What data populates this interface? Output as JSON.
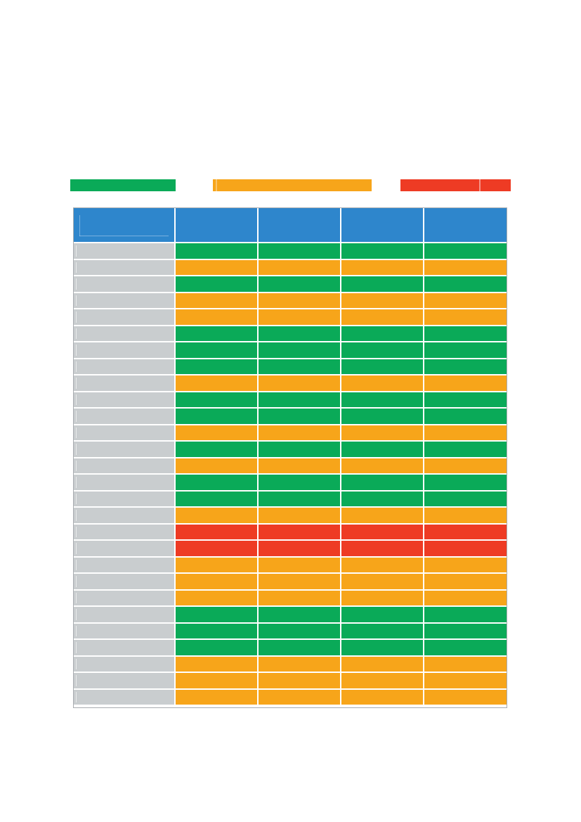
{
  "colors": {
    "green": "#0aaa58",
    "amber": "#f7a51a",
    "red": "#ee3b24",
    "header": "#2e86cc",
    "label": "#c9cdcf"
  },
  "legend": [
    {
      "key": "green",
      "label": ""
    },
    {
      "key": "amber",
      "label": ""
    },
    {
      "key": "red",
      "label": ""
    }
  ],
  "table": {
    "headers": [
      "",
      "",
      "",
      "",
      ""
    ],
    "rows": [
      {
        "label": "",
        "status": "green"
      },
      {
        "label": "",
        "status": "amber"
      },
      {
        "label": "",
        "status": "green"
      },
      {
        "label": "",
        "status": "amber"
      },
      {
        "label": "",
        "status": "amber"
      },
      {
        "label": "",
        "status": "green"
      },
      {
        "label": "",
        "status": "green"
      },
      {
        "label": "",
        "status": "green"
      },
      {
        "label": "",
        "status": "amber"
      },
      {
        "label": "",
        "status": "green"
      },
      {
        "label": "",
        "status": "green"
      },
      {
        "label": "",
        "status": "amber"
      },
      {
        "label": "",
        "status": "green"
      },
      {
        "label": "",
        "status": "amber"
      },
      {
        "label": "",
        "status": "green"
      },
      {
        "label": "",
        "status": "green"
      },
      {
        "label": "",
        "status": "amber"
      },
      {
        "label": "",
        "status": "red"
      },
      {
        "label": "",
        "status": "red"
      },
      {
        "label": "",
        "status": "amber"
      },
      {
        "label": "",
        "status": "amber"
      },
      {
        "label": "",
        "status": "amber"
      },
      {
        "label": "",
        "status": "green"
      },
      {
        "label": "",
        "status": "green"
      },
      {
        "label": "",
        "status": "green"
      },
      {
        "label": "",
        "status": "amber"
      },
      {
        "label": "",
        "status": "amber"
      },
      {
        "label": "",
        "status": "amber"
      }
    ]
  }
}
